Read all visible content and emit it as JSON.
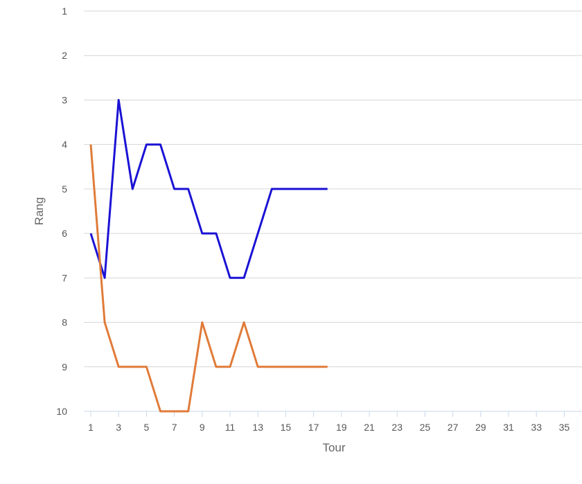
{
  "chart_data": {
    "type": "line",
    "xlabel": "Tour",
    "ylabel": "Rang",
    "xlim": [
      1,
      36
    ],
    "ylim": [
      1,
      10
    ],
    "y_reversed": true,
    "y_ticks": [
      "1",
      "2",
      "3",
      "4",
      "5",
      "6",
      "7",
      "8",
      "9",
      "10"
    ],
    "x_ticks": [
      "1",
      "3",
      "5",
      "7",
      "9",
      "11",
      "13",
      "15",
      "17",
      "19",
      "21",
      "23",
      "25",
      "27",
      "29",
      "31",
      "33",
      "35"
    ],
    "grid": true,
    "x": [
      1,
      2,
      3,
      4,
      5,
      6,
      7,
      8,
      9,
      10,
      11,
      12,
      13,
      14,
      15,
      16,
      17,
      18
    ],
    "series": [
      {
        "color": "#1a12d4",
        "values": [
          6,
          7,
          3,
          5,
          4,
          4,
          5,
          5,
          6,
          6,
          7,
          7,
          6,
          5,
          5,
          5,
          5,
          5
        ]
      },
      {
        "color": "#e07b39",
        "values": [
          4,
          8,
          9,
          9,
          9,
          10,
          10,
          10,
          8,
          9,
          9,
          8,
          9,
          9,
          9,
          9,
          9,
          9
        ]
      }
    ]
  }
}
